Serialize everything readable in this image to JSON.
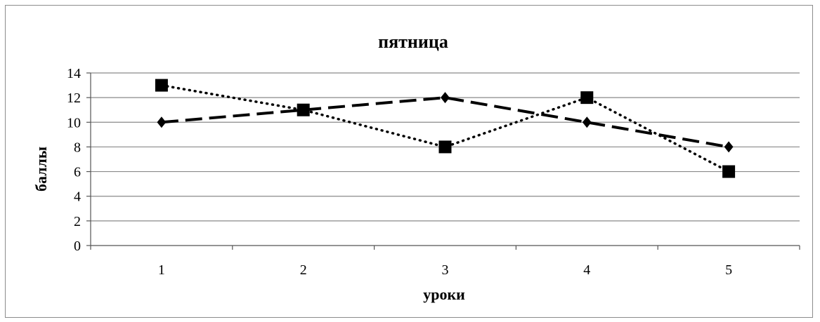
{
  "chart_data": {
    "type": "line",
    "title": "пятница",
    "xlabel": "уроки",
    "ylabel": "баллы",
    "categories": [
      "1",
      "2",
      "3",
      "4",
      "5"
    ],
    "ylim": [
      0,
      14
    ],
    "yticks": [
      0,
      2,
      4,
      6,
      8,
      10,
      12,
      14
    ],
    "grid": true,
    "legend": "none",
    "series": [
      {
        "values": [
          13,
          11,
          8,
          12,
          6
        ],
        "marker": "square",
        "line_style": "dotted",
        "color": "#000000"
      },
      {
        "values": [
          10,
          11,
          12,
          10,
          8
        ],
        "marker": "diamond",
        "line_style": "dashed",
        "color": "#000000"
      }
    ]
  }
}
